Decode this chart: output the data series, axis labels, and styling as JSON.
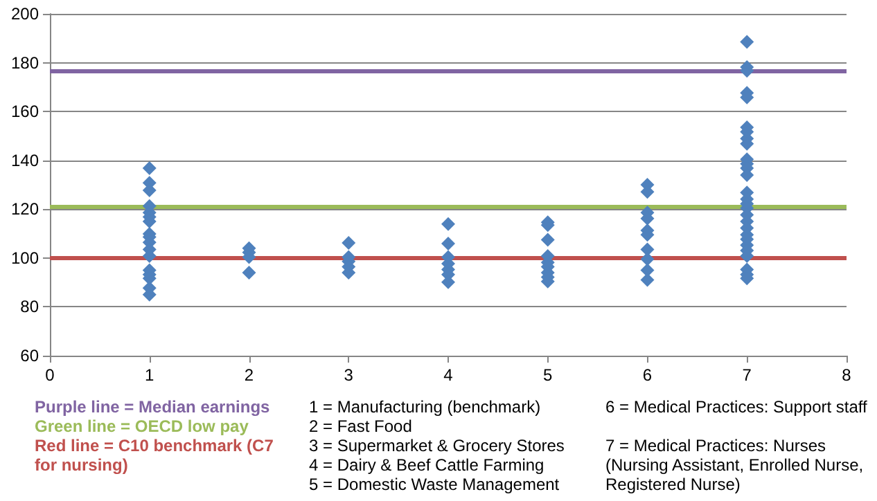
{
  "chart_data": {
    "type": "scatter",
    "marker": "diamond",
    "grid": "y",
    "xlim": [
      0,
      8
    ],
    "xticks": [
      0,
      1,
      2,
      3,
      4,
      5,
      6,
      7,
      8
    ],
    "ylim": [
      60,
      200
    ],
    "yticks": [
      60,
      80,
      100,
      120,
      140,
      160,
      180,
      200
    ],
    "series": [
      {
        "color": "#4f81bd",
        "x": [
          1,
          1,
          1,
          1,
          1,
          1,
          1,
          1,
          1,
          1,
          1,
          1,
          1,
          1,
          1,
          1,
          1,
          2,
          2,
          2,
          2,
          3,
          3,
          3,
          3,
          3,
          4,
          4,
          4,
          4,
          4,
          4,
          4,
          5,
          5,
          5,
          5,
          5,
          5,
          5,
          5,
          5,
          6,
          6,
          6,
          6,
          6,
          6,
          6,
          6,
          6,
          6,
          7,
          7,
          7,
          7,
          7,
          7,
          7,
          7,
          7,
          7,
          7,
          7,
          7,
          7,
          7,
          7,
          7,
          7,
          7,
          7,
          7,
          7,
          7,
          7,
          7,
          7,
          7,
          7
        ],
        "values": [
          136.8,
          130.8,
          127.7,
          121.3,
          118.6,
          116.8,
          115,
          109.9,
          108.6,
          106.4,
          103.5,
          100.8,
          95,
          93.2,
          91.7,
          87.7,
          85,
          104,
          102.3,
          100.4,
          94,
          106.2,
          100.4,
          98.6,
          96.4,
          94,
          113.9,
          105.9,
          100.4,
          97.7,
          95.3,
          93.2,
          90.1,
          114.6,
          113.5,
          107.5,
          100.8,
          98.2,
          96.4,
          94,
          92.2,
          90.4,
          130,
          127.1,
          118.6,
          116.2,
          111.3,
          109.5,
          103.5,
          99.5,
          95,
          91,
          188.5,
          178.2,
          176.7,
          167.6,
          165.8,
          153.5,
          151.7,
          148.9,
          146.8,
          140.4,
          138.6,
          136.8,
          134,
          126.8,
          124.1,
          122.2,
          120.4,
          117.7,
          115,
          112.3,
          109.5,
          107.7,
          105.3,
          103.1,
          100.8,
          95.3,
          93.2,
          91.7
        ]
      }
    ],
    "ref_lines": [
      {
        "axis": "y",
        "value": 176.5,
        "color": "#8064a2"
      },
      {
        "axis": "y",
        "value": 121,
        "color": "#9bbb59"
      },
      {
        "axis": "y",
        "value": 100,
        "color": "#c0504d"
      }
    ],
    "annotations": [
      "Purple line = Median earnings",
      "Green line = OECD low pay",
      "Red line = C10 benchmark (C7 for nursing)",
      "1 = Manufacturing (benchmark)",
      "2 = Fast Food",
      "3 = Supermarket & Grocery Stores",
      "4 = Dairy & Beef Cattle Farming",
      "5 = Domestic Waste Management",
      "6 = Medical Practices: Support staff",
      "7 = Medical Practices: Nurses (Nursing Assistant, Enrolled Nurse, Registered Nurse)"
    ]
  }
}
